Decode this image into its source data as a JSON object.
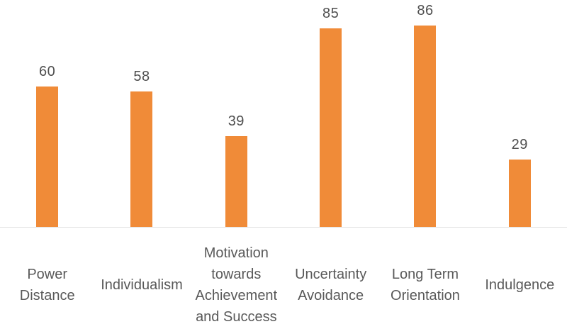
{
  "chart_data": {
    "type": "bar",
    "title": "",
    "xlabel": "",
    "ylabel": "",
    "grid": false,
    "legend": false,
    "ylim": [
      0,
      97
    ],
    "categories": [
      "Power Distance",
      "Individualism",
      "Motivation towards Achievement and Success",
      "Uncertainty Avoidance",
      "Long Term Orientation",
      "Indulgence"
    ],
    "category_label_lines": [
      [
        "Power",
        "Distance"
      ],
      [
        "Individualism"
      ],
      [
        "Motivation",
        "towards",
        "Achievement",
        "and Success"
      ],
      [
        "Uncertainty",
        "Avoidance"
      ],
      [
        "Long Term",
        "Orientation"
      ],
      [
        "Indulgence"
      ]
    ],
    "values": [
      60,
      58,
      39,
      85,
      86,
      29
    ],
    "value_labels": [
      "60",
      "58",
      "39",
      "85",
      "86",
      "29"
    ],
    "colors": {
      "bar": "#f08b38",
      "value_label": "#4f4f4f",
      "category_label": "#595959",
      "axis_line": "#e2e2e2",
      "background": "#ffffff"
    }
  }
}
